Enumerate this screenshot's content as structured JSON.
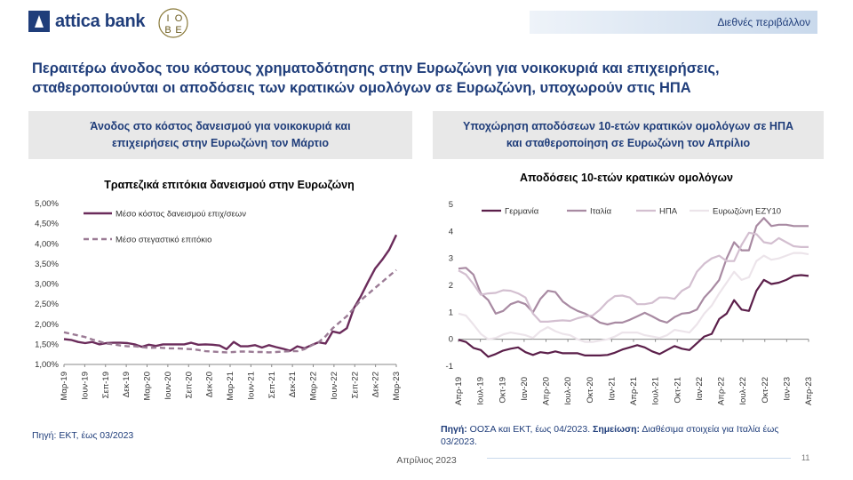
{
  "header": {
    "brand": "attica bank",
    "iobe_letters": [
      "Ι",
      "Ο",
      "Β",
      "Ε"
    ],
    "section_tag": "Διεθνές περιβάλλον"
  },
  "title_line1": "Περαιτέρω άνοδος του κόστους χρηματοδότησης  στην Ευρωζώνη για νοικοκυριά και επιχειρήσεις,",
  "title_line2": "σταθεροποιούνται  οι αποδόσεις των κρατικών ομολόγων σε Ευρωζώνη, υποχωρούν στις ΗΠΑ",
  "left_panel": {
    "heading_line1": "Άνοδος στο κόστος δανεισμού για νοικοκυριά και",
    "heading_line2": "επιχειρήσεις στην Ευρωζώνη τον Μάρτιο",
    "source": "Πηγή: ΕΚΤ, έως 03/2023"
  },
  "right_panel": {
    "heading_line1": "Υποχώρηση αποδόσεων 10-ετών κρατικών ομολόγων σε ΗΠΑ",
    "heading_line2": "και σταθεροποίηση σε Ευρωζώνη τον Απρίλιο",
    "source_label": "Πηγή:",
    "source_text": " ΟΟΣΑ και ΕΚΤ,  έως 04/2023. ",
    "note_label": "Σημείωση:",
    "note_text": " Διαθέσιμα στοιχεία για Ιταλία έως 03/2023."
  },
  "footer": {
    "date": "Απρίλιος 2023",
    "page": "11"
  },
  "chart_data": [
    {
      "type": "line",
      "title": "Τραπεζικά επιτόκια δανεισμού στην Ευρωζώνη",
      "ylim": [
        1.0,
        5.0
      ],
      "y_ticks": [
        1.0,
        1.5,
        2.0,
        2.5,
        3.0,
        3.5,
        4.0,
        4.5,
        5.0
      ],
      "y_tick_labels": [
        "1,00%",
        "1,50%",
        "2,00%",
        "2,50%",
        "3,00%",
        "3,50%",
        "4,00%",
        "4,50%",
        "5,00%"
      ],
      "x_tick_labels": [
        "Μαρ-19",
        "Ιουν-19",
        "Σεπ-19",
        "Δεκ-19",
        "Μαρ-20",
        "Ιουν-20",
        "Σεπ-20",
        "Δεκ-20",
        "Μαρ-21",
        "Ιουν-21",
        "Σεπ-21",
        "Δεκ-21",
        "Μαρ-22",
        "Ιουν-22",
        "Σεπ-22",
        "Δεκ-22",
        "Μαρ-23"
      ],
      "legend_position": "top-left",
      "grid": false,
      "series": [
        {
          "name": "Μέσο κόστος δανεισμού επιχ/σεων",
          "color": "#6b2c5b",
          "dash": false,
          "values": [
            1.63,
            1.61,
            1.56,
            1.53,
            1.56,
            1.5,
            1.53,
            1.54,
            1.54,
            1.53,
            1.5,
            1.44,
            1.49,
            1.46,
            1.5,
            1.5,
            1.5,
            1.5,
            1.54,
            1.49,
            1.5,
            1.49,
            1.47,
            1.38,
            1.56,
            1.45,
            1.45,
            1.48,
            1.42,
            1.48,
            1.43,
            1.39,
            1.34,
            1.45,
            1.4,
            1.48,
            1.55,
            1.52,
            1.82,
            1.78,
            1.9,
            2.4,
            2.7,
            3.05,
            3.38,
            3.6,
            3.85,
            4.22
          ]
        },
        {
          "name": "Μέσο στεγαστικό επιτόκιο",
          "color": "#9b7b95",
          "dash": true,
          "values": [
            1.8,
            1.76,
            1.72,
            1.68,
            1.62,
            1.57,
            1.52,
            1.5,
            1.47,
            1.45,
            1.45,
            1.43,
            1.41,
            1.42,
            1.41,
            1.4,
            1.4,
            1.39,
            1.38,
            1.36,
            1.33,
            1.32,
            1.31,
            1.3,
            1.31,
            1.32,
            1.32,
            1.31,
            1.31,
            1.3,
            1.31,
            1.32,
            1.33,
            1.33,
            1.38,
            1.47,
            1.55,
            1.7,
            1.9,
            2.05,
            2.2,
            2.4,
            2.6,
            2.75,
            2.9,
            3.05,
            3.2,
            3.35
          ]
        }
      ]
    },
    {
      "type": "line",
      "title": "Αποδόσεις 10-ετών κρατικών ομολόγων",
      "ylim": [
        -1,
        5
      ],
      "y_ticks": [
        -1,
        0,
        1,
        2,
        3,
        4,
        5
      ],
      "y_tick_labels": [
        "-1",
        "0",
        "1",
        "2",
        "3",
        "4",
        "5"
      ],
      "x_tick_labels": [
        "Απρ-19",
        "Ιουλ-19",
        "Οκτ-19",
        "Ιαν-20",
        "Απρ-20",
        "Ιουλ-20",
        "Οκτ-20",
        "Ιαν-21",
        "Απρ-21",
        "Ιουλ-21",
        "Οκτ-21",
        "Ιαν-22",
        "Απρ-22",
        "Ιουλ-22",
        "Οκτ-22",
        "Ιαν-23",
        "Απρ-23"
      ],
      "legend_position": "top",
      "grid": false,
      "series": [
        {
          "name": "Γερμανία",
          "color": "#5b1f4a",
          "values": [
            -0.02,
            -0.1,
            -0.32,
            -0.4,
            -0.65,
            -0.55,
            -0.42,
            -0.35,
            -0.3,
            -0.48,
            -0.58,
            -0.48,
            -0.52,
            -0.45,
            -0.52,
            -0.52,
            -0.52,
            -0.6,
            -0.6,
            -0.6,
            -0.58,
            -0.5,
            -0.38,
            -0.3,
            -0.22,
            -0.3,
            -0.45,
            -0.55,
            -0.4,
            -0.25,
            -0.35,
            -0.4,
            -0.15,
            0.1,
            0.2,
            0.75,
            0.95,
            1.45,
            1.1,
            1.05,
            1.8,
            2.2,
            2.05,
            2.1,
            2.2,
            2.35,
            2.38,
            2.35
          ]
        },
        {
          "name": "Ιταλία",
          "color": "#a88aa2",
          "values": [
            2.62,
            2.65,
            2.4,
            1.7,
            1.45,
            0.95,
            1.05,
            1.3,
            1.4,
            1.3,
            1.0,
            1.5,
            1.8,
            1.75,
            1.4,
            1.2,
            1.05,
            0.95,
            0.8,
            0.62,
            0.55,
            0.62,
            0.62,
            0.72,
            0.85,
            0.98,
            0.85,
            0.7,
            0.62,
            0.82,
            0.95,
            0.98,
            1.1,
            1.55,
            1.85,
            2.2,
            3.0,
            3.6,
            3.3,
            3.3,
            4.2,
            4.5,
            4.2,
            4.25,
            4.25,
            4.2,
            4.2,
            4.2
          ]
        },
        {
          "name": "ΗΠΑ",
          "color": "#d3bfd0",
          "values": [
            2.55,
            2.4,
            2.05,
            1.65,
            1.7,
            1.72,
            1.82,
            1.8,
            1.7,
            1.55,
            0.95,
            0.65,
            0.65,
            0.68,
            0.7,
            0.68,
            0.78,
            0.85,
            0.88,
            1.1,
            1.4,
            1.6,
            1.62,
            1.55,
            1.3,
            1.3,
            1.35,
            1.55,
            1.55,
            1.5,
            1.8,
            1.95,
            2.5,
            2.8,
            3.0,
            3.1,
            2.9,
            2.9,
            3.5,
            3.95,
            3.9,
            3.6,
            3.55,
            3.75,
            3.6,
            3.45,
            3.42,
            3.42
          ]
        },
        {
          "name": "Ευρωζώνη ΕΖΥ10",
          "color": "#ece4ea",
          "values": [
            0.95,
            0.88,
            0.55,
            0.2,
            0.0,
            0.05,
            0.18,
            0.25,
            0.2,
            0.15,
            0.05,
            0.3,
            0.45,
            0.3,
            0.2,
            0.15,
            0.0,
            -0.1,
            -0.1,
            -0.05,
            0.0,
            0.1,
            0.25,
            0.25,
            0.25,
            0.15,
            0.1,
            0.05,
            0.15,
            0.35,
            0.3,
            0.25,
            0.55,
            0.95,
            1.25,
            1.7,
            2.1,
            2.5,
            2.2,
            2.3,
            2.9,
            3.1,
            2.95,
            3.0,
            3.1,
            3.2,
            3.2,
            3.15
          ]
        }
      ]
    }
  ]
}
